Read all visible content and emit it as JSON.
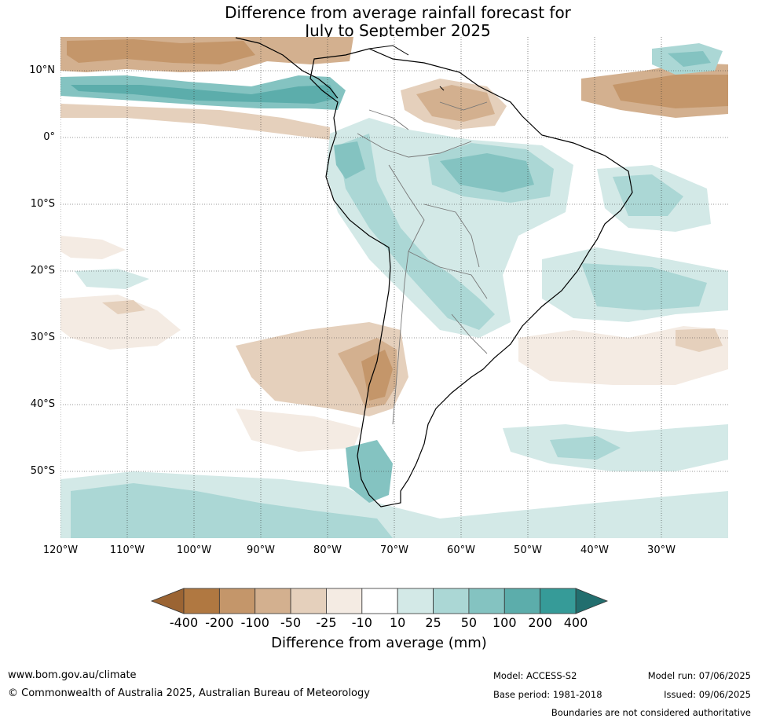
{
  "title_line1": "Difference from average rainfall forecast for",
  "title_line2": "July to September 2025",
  "lat_labels": [
    "10°N",
    "0°",
    "10°S",
    "20°S",
    "30°S",
    "40°S",
    "50°S"
  ],
  "lon_labels": [
    "120°W",
    "110°W",
    "100°W",
    "90°W",
    "80°W",
    "70°W",
    "60°W",
    "50°W",
    "40°W",
    "30°W"
  ],
  "colorbar": {
    "title": "Difference from average (mm)",
    "ticks": [
      "-400",
      "-200",
      "-100",
      "-50",
      "-25",
      "-10",
      "10",
      "25",
      "50",
      "100",
      "200",
      "400"
    ],
    "colors": [
      "#9b6433",
      "#b07841",
      "#c4966a",
      "#d3b08f",
      "#e5d0bc",
      "#f4ebe3",
      "#ffffff",
      "#d3e9e7",
      "#abd7d5",
      "#84c3c1",
      "#5cadab",
      "#369b98",
      "#226e6e"
    ]
  },
  "footer": {
    "website": "www.bom.gov.au/climate",
    "copyright": "© Commonwealth of Australia 2025, Australian Bureau of Meteorology",
    "model": "Model: ACCESS-S2",
    "base_period": "Base period: 1981-2018",
    "model_run": "Model run: 07/06/2025",
    "issued": "Issued: 09/06/2025",
    "disclaimer": "Boundaries are not considered authoritative"
  }
}
